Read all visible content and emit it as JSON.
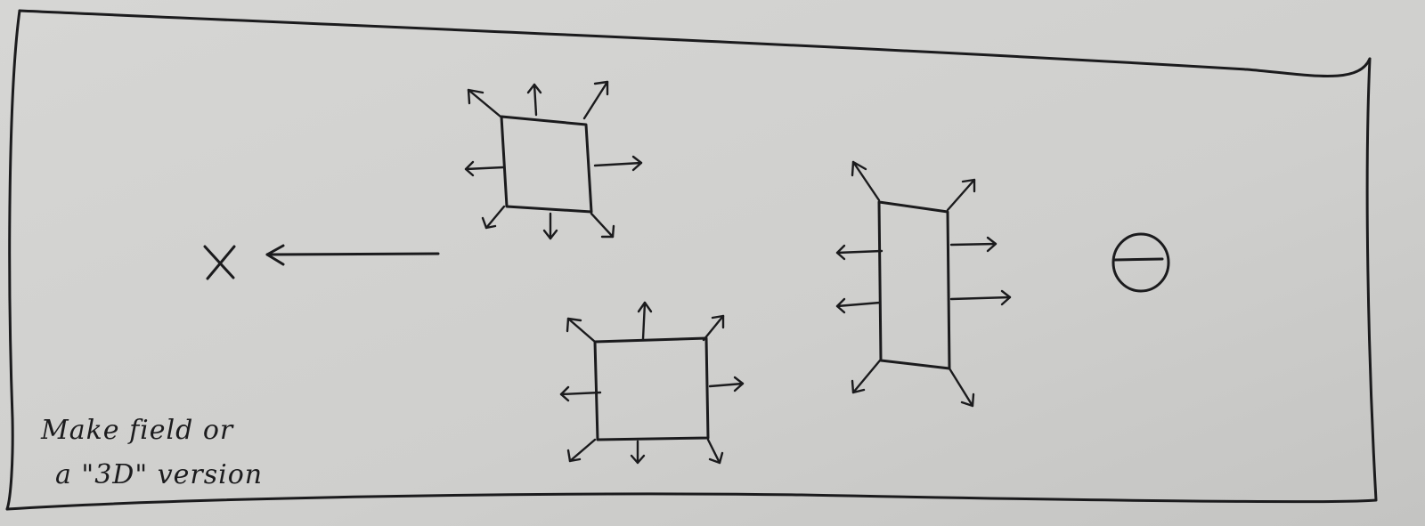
{
  "annotation": {
    "line1": "Make field or",
    "line2": "a \"3D\" version"
  },
  "colors": {
    "paper": "#cdcdcb",
    "ink": "#1b1b1d"
  },
  "icons": [
    "close-x-icon",
    "arrow-left-icon",
    "minus-circle-icon"
  ]
}
